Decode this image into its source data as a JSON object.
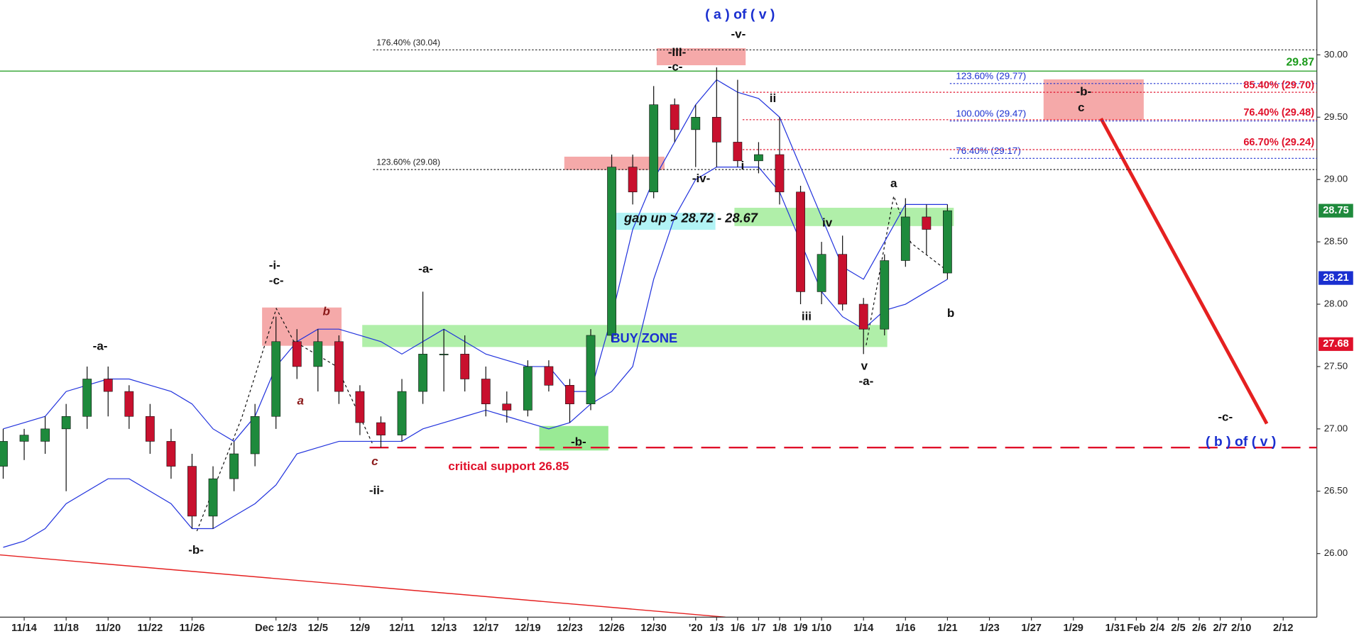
{
  "chart_data": {
    "type": "candlestick",
    "categories": [
      null,
      "11/14",
      null,
      "11/18",
      null,
      "11/20",
      null,
      "11/22",
      null,
      "11/26",
      null,
      null,
      null,
      "Dec 12/3",
      null,
      "12/5",
      null,
      "12/9",
      null,
      "12/11",
      null,
      "12/13",
      null,
      "12/17",
      null,
      "12/19",
      null,
      "12/23",
      null,
      "12/26",
      null,
      "12/30",
      null,
      "'20",
      "1/3",
      "1/6",
      "1/7",
      "1/8",
      "1/9",
      "1/10",
      null,
      "1/14",
      null,
      "1/16",
      null,
      "1/21",
      null,
      "1/23",
      null,
      "1/27",
      null,
      "1/29",
      null,
      "1/31",
      "Feb",
      "2/4",
      "2/5",
      "2/6",
      "2/7",
      "2/10",
      null,
      "2/12"
    ],
    "open": [
      26.7,
      26.9,
      26.9,
      27.0,
      27.1,
      27.4,
      27.3,
      27.1,
      26.9,
      26.7,
      26.3,
      26.6,
      26.8,
      27.1,
      27.7,
      27.5,
      27.7,
      27.3,
      27.05,
      26.95,
      27.3,
      27.6,
      27.6,
      27.4,
      27.2,
      27.15,
      27.5,
      27.35,
      27.2,
      27.75,
      29.1,
      28.9,
      29.6,
      29.4,
      29.5,
      29.3,
      29.15,
      29.2,
      28.9,
      28.1,
      28.4,
      28.0,
      27.8,
      28.35,
      28.7,
      28.25,
      null,
      null,
      null,
      null,
      null,
      null,
      null,
      null,
      null,
      null,
      null,
      null,
      null,
      null,
      null,
      null
    ],
    "high": [
      27.0,
      27.0,
      27.1,
      27.2,
      27.5,
      27.5,
      27.35,
      27.2,
      27.0,
      26.8,
      26.7,
      26.9,
      27.2,
      27.9,
      27.8,
      27.8,
      27.75,
      27.35,
      27.1,
      27.4,
      28.1,
      27.8,
      27.75,
      27.5,
      27.3,
      27.55,
      27.55,
      27.4,
      27.8,
      29.2,
      29.2,
      29.75,
      29.65,
      29.6,
      29.9,
      29.8,
      29.3,
      29.5,
      28.95,
      28.5,
      28.55,
      28.05,
      28.4,
      28.85,
      28.8,
      28.8,
      null,
      null,
      null,
      null,
      null,
      null,
      null,
      null,
      null,
      null,
      null,
      null,
      null,
      null,
      null,
      null
    ],
    "low": [
      26.6,
      26.75,
      26.8,
      26.5,
      27.0,
      27.1,
      27.0,
      26.8,
      26.6,
      26.2,
      26.2,
      26.5,
      26.7,
      27.0,
      27.4,
      27.3,
      27.2,
      26.95,
      26.85,
      26.9,
      27.2,
      27.3,
      27.3,
      27.1,
      27.05,
      27.1,
      27.3,
      27.05,
      27.15,
      27.7,
      28.8,
      28.85,
      29.3,
      29.1,
      29.1,
      29.1,
      29.05,
      28.8,
      28.0,
      28.0,
      27.95,
      27.6,
      27.75,
      28.3,
      28.4,
      28.2,
      null,
      null,
      null,
      null,
      null,
      null,
      null,
      null,
      null,
      null,
      null,
      null,
      null,
      null,
      null,
      null
    ],
    "close": [
      26.9,
      26.95,
      27.0,
      27.1,
      27.4,
      27.3,
      27.1,
      26.9,
      26.7,
      26.3,
      26.6,
      26.8,
      27.1,
      27.7,
      27.5,
      27.7,
      27.3,
      27.05,
      26.95,
      27.3,
      27.6,
      27.6,
      27.4,
      27.2,
      27.15,
      27.5,
      27.35,
      27.2,
      27.75,
      29.1,
      28.9,
      29.6,
      29.4,
      29.5,
      29.3,
      29.15,
      29.2,
      28.9,
      28.1,
      28.4,
      28.0,
      27.8,
      28.35,
      28.7,
      28.6,
      28.75,
      null,
      null,
      null,
      null,
      null,
      null,
      null,
      null,
      null,
      null,
      null,
      null,
      null,
      null,
      null,
      null
    ],
    "up_color": "#1e8a3c",
    "down_color": "#c8102e",
    "bands": [
      {
        "color": "#2233dd",
        "values": [
          27.0,
          27.05,
          27.1,
          27.3,
          27.35,
          27.4,
          27.4,
          27.35,
          27.3,
          27.2,
          27.0,
          26.9,
          27.1,
          27.5,
          27.7,
          27.8,
          27.8,
          27.75,
          27.7,
          27.6,
          27.7,
          27.8,
          27.7,
          27.6,
          27.55,
          27.5,
          27.5,
          27.3,
          27.3,
          27.9,
          28.6,
          29.0,
          29.3,
          29.6,
          29.8,
          29.7,
          29.65,
          29.5,
          29.1,
          28.7,
          28.3,
          28.2,
          28.5,
          28.8,
          28.8,
          28.8,
          null,
          null,
          null,
          null,
          null,
          null,
          null,
          null,
          null,
          null,
          null,
          null,
          null,
          null,
          null,
          null
        ]
      },
      {
        "color": "#2233dd",
        "values": [
          26.05,
          26.1,
          26.2,
          26.4,
          26.5,
          26.6,
          26.6,
          26.5,
          26.4,
          26.2,
          26.2,
          26.3,
          26.4,
          26.55,
          26.8,
          26.85,
          26.9,
          26.9,
          26.9,
          26.9,
          27.0,
          27.05,
          27.1,
          27.15,
          27.1,
          27.05,
          27.0,
          27.05,
          27.2,
          27.3,
          27.5,
          28.2,
          28.7,
          29.0,
          29.1,
          29.1,
          29.1,
          28.9,
          28.5,
          28.1,
          27.9,
          27.8,
          27.95,
          28.0,
          28.1,
          28.2,
          null,
          null,
          null,
          null,
          null,
          null,
          null,
          null,
          null,
          null,
          null,
          null,
          null,
          null,
          null,
          null
        ]
      }
    ],
    "ylim": [
      25.49,
      30.44
    ],
    "yticks": [
      {
        "value": 26,
        "label": "26.00"
      },
      {
        "value": 26.5,
        "label": "26.50"
      },
      {
        "value": 27,
        "label": "27.00"
      },
      {
        "value": 27.5,
        "label": "27.50"
      },
      {
        "value": 28,
        "label": "28.00"
      },
      {
        "value": 28.5,
        "label": "28.50"
      },
      {
        "value": 29,
        "label": "29.00"
      },
      {
        "value": 29.5,
        "label": "29.50"
      },
      {
        "value": 30,
        "label": "30.00"
      }
    ],
    "zones": [
      {
        "color": "#f4a0a0",
        "range": [
          27.67,
          27.97
        ]
      },
      {
        "color": "#a8eea0",
        "range": [
          27.66,
          27.83
        ]
      },
      {
        "color": "#8fe88a",
        "range": [
          26.83,
          27.02
        ]
      },
      {
        "color": "#f4a0a0",
        "range": [
          29.08,
          29.18
        ]
      },
      {
        "color": "#a9f2f5",
        "range": [
          28.6,
          28.73
        ]
      },
      {
        "color": "#a8eea0",
        "range": [
          28.63,
          28.77
        ]
      },
      {
        "color": "#f4a0a0",
        "range": [
          29.92,
          30.05
        ]
      },
      {
        "color": "#f4a0a0",
        "range": [
          29.48,
          29.8
        ]
      }
    ],
    "fib_sets": [
      {
        "color": "#222",
        "levels": [
          {
            "label": "176.40% (30.04)",
            "value": 30.04
          },
          {
            "label": "123.60% (29.08)",
            "value": 29.08
          }
        ]
      },
      {
        "color": "#1a2fd0",
        "levels": [
          {
            "label": "123.60% (29.77)",
            "value": 29.77
          },
          {
            "label": "100.00% (29.47)",
            "value": 29.47
          },
          {
            "label": "76.40% (29.17)",
            "value": 29.17
          }
        ]
      },
      {
        "color": "#e0102a",
        "levels": [
          {
            "label": "85.40% (29.70)",
            "value": 29.7
          },
          {
            "label": "76.40% (29.48)",
            "value": 29.48
          },
          {
            "label": "66.70% (29.24)",
            "value": 29.24
          }
        ]
      }
    ],
    "reference_line": {
      "value": 29.87,
      "color": "#1a9a1a"
    },
    "support": {
      "value": 26.85,
      "label": "critical support 26.85",
      "color": "#e0102a"
    },
    "price_tags": [
      {
        "value": 28.75,
        "color": "#1e8a3c"
      },
      {
        "value": 28.21,
        "color": "#1a2fd0"
      },
      {
        "value": 27.68,
        "color": "#e0102a"
      }
    ],
    "annotations": [
      "( a ) of ( v )",
      "-v-",
      "-III-",
      "-c-",
      "ii",
      "-iv-",
      "i",
      "a",
      "iv",
      "iii",
      "b",
      "v",
      "-a-",
      "-a-",
      "-b-",
      "-i-",
      "-c-",
      "b",
      "a",
      "c",
      "-ii-",
      "-a-",
      "-b-",
      "BUY ZONE",
      "gap up > 28.72 - 28.67",
      "-b-",
      "c",
      "-c-",
      "( b ) of ( v )"
    ]
  }
}
